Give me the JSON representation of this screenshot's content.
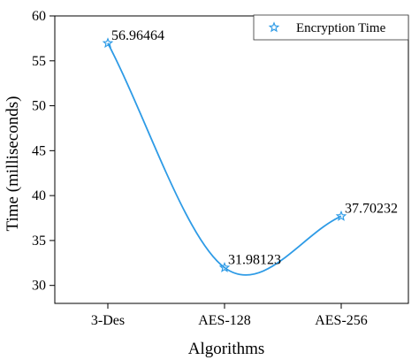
{
  "chart_data": {
    "type": "line",
    "categories": [
      "3-Des",
      "AES-128",
      "AES-256"
    ],
    "series": [
      {
        "name": "Encryption Time",
        "values": [
          56.96464,
          31.98123,
          37.70232
        ],
        "value_labels": [
          "56.96464",
          "31.98123",
          "37.70232"
        ],
        "color": "#2E9BE6"
      }
    ],
    "xlabel": "Algorithms",
    "ylabel": "Time (milliseconds)",
    "ylim": [
      28,
      60
    ],
    "yticks": [
      30,
      35,
      40,
      45,
      50,
      55,
      60
    ],
    "grid": false,
    "legend_position": "top-right",
    "smooth": true,
    "marker": "star"
  }
}
